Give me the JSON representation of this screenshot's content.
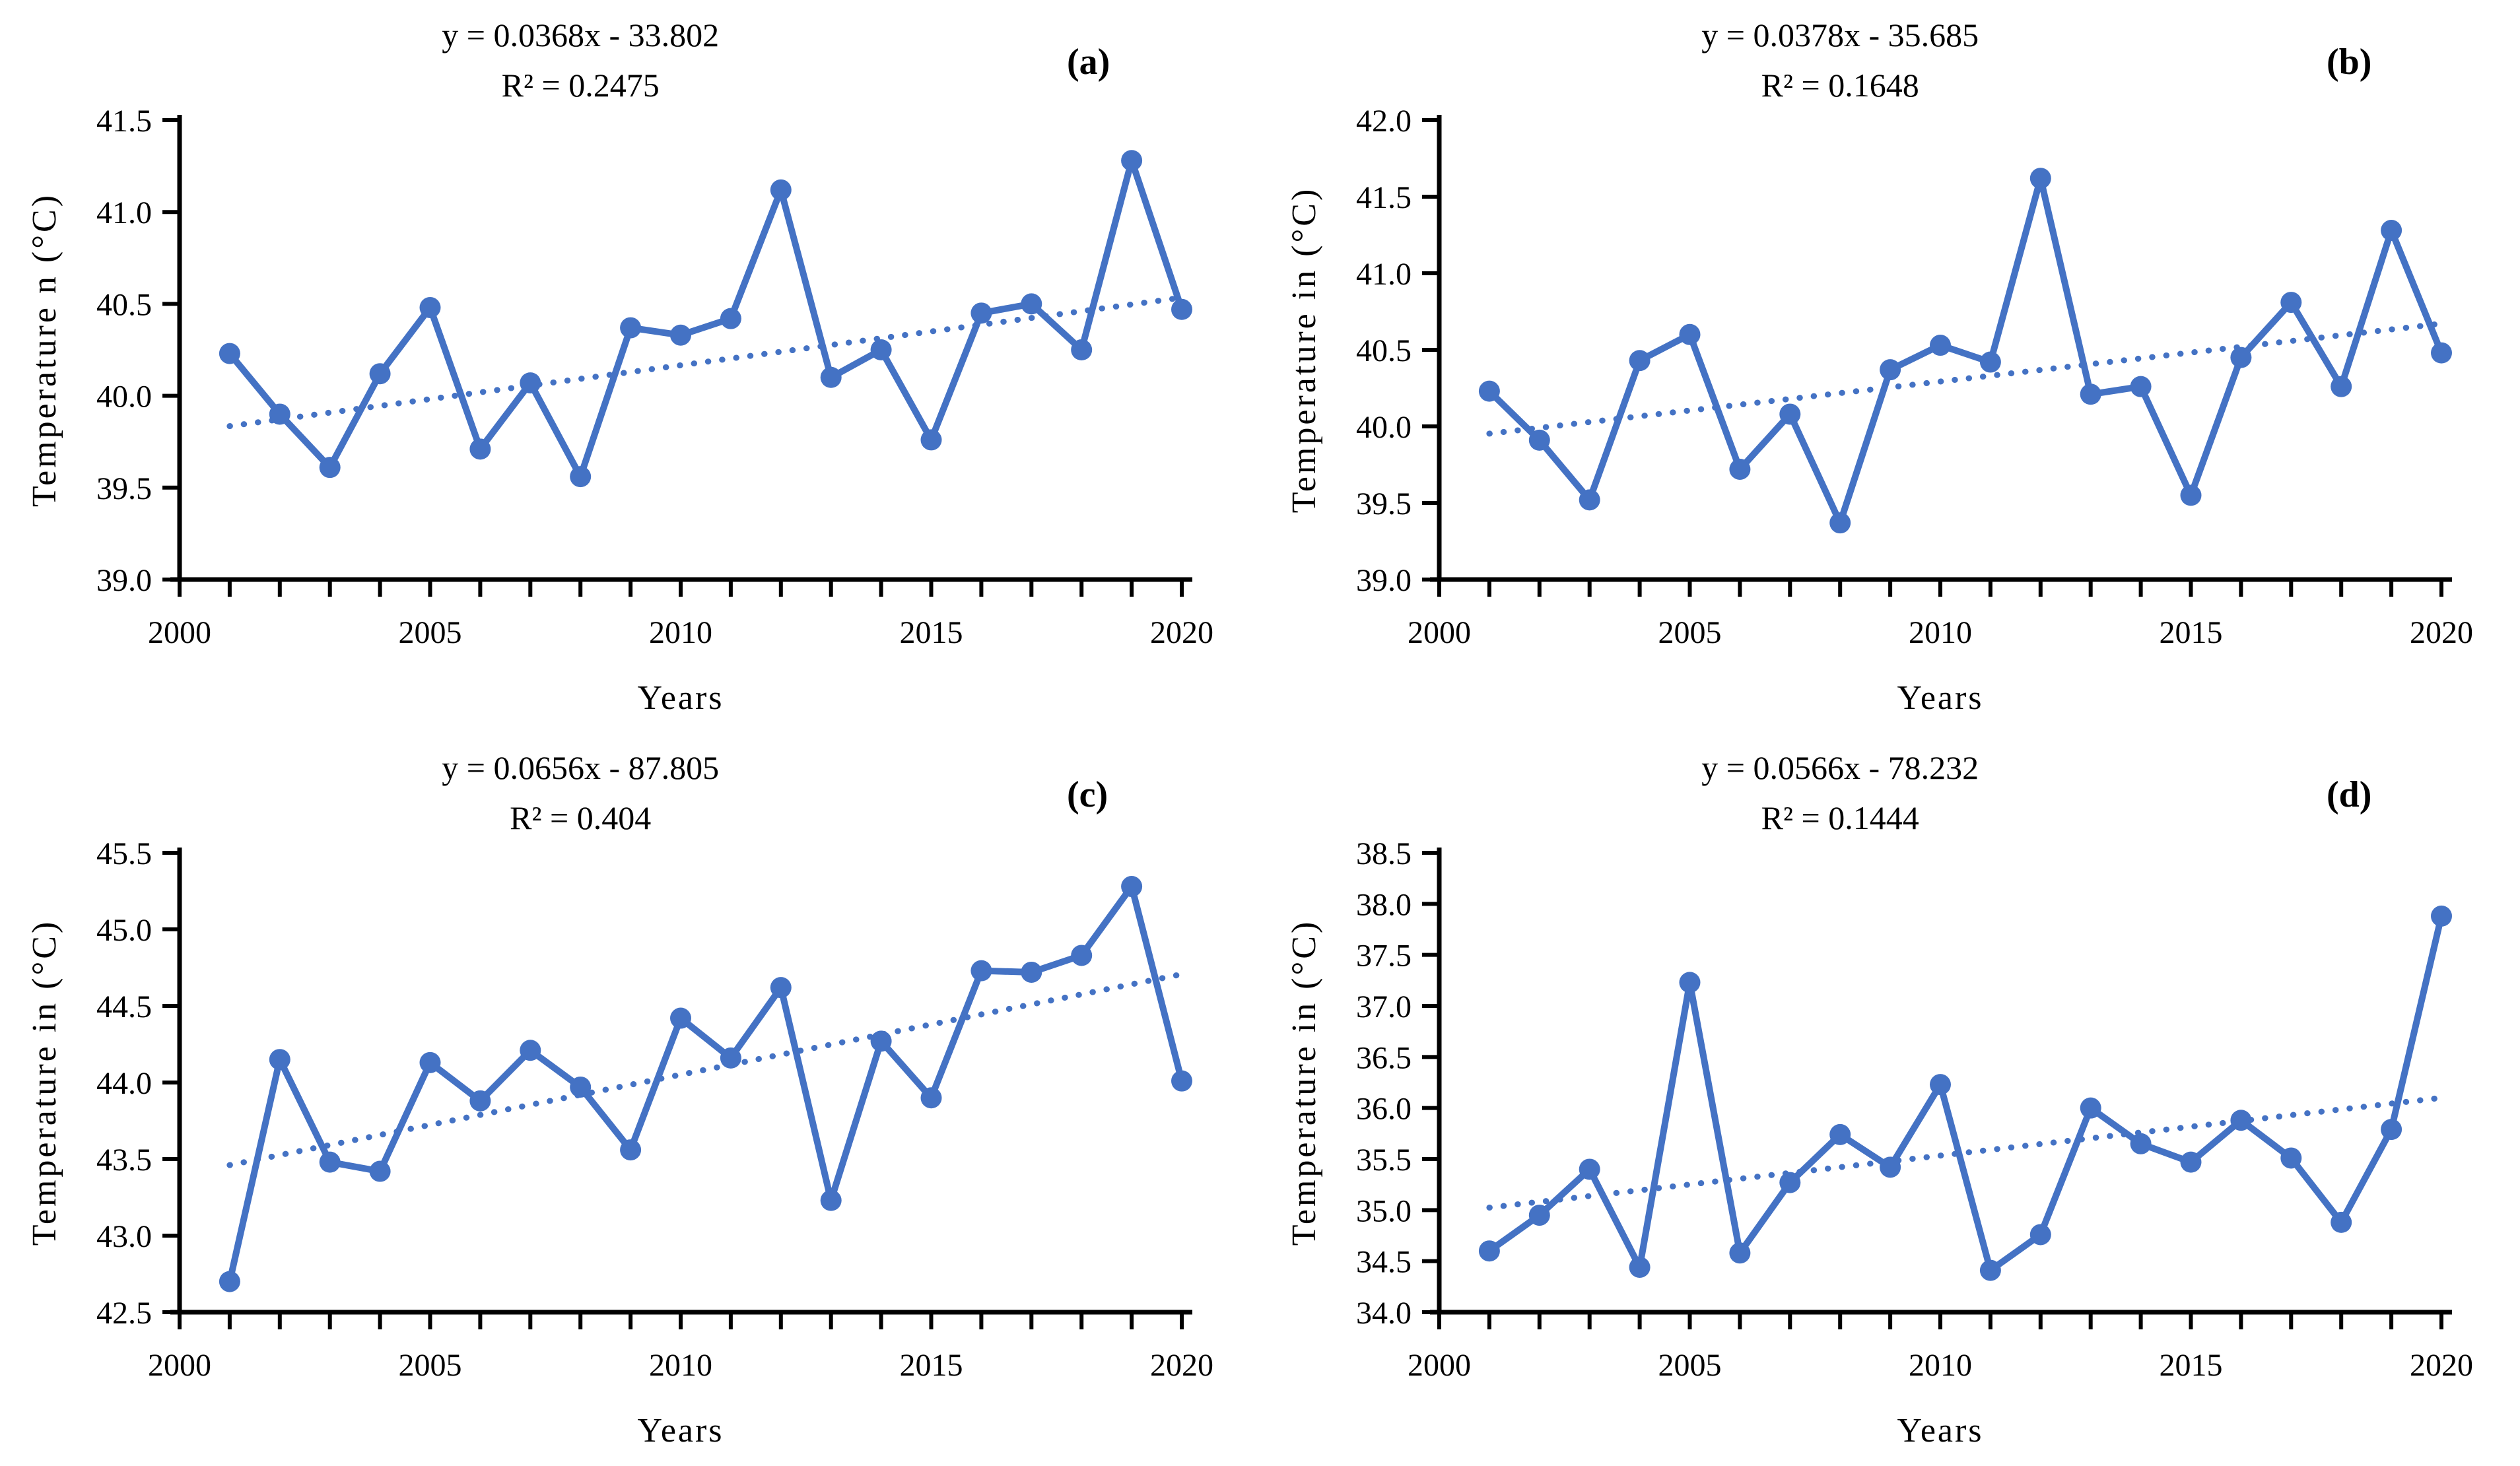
{
  "figure": {
    "background": "#ffffff"
  },
  "accent_color": "#4472C4",
  "axis_color": "#000000",
  "chart_data": [
    {
      "type": "line",
      "panel_label": "(a)",
      "equation_label": "y = 0.0368x - 33.802",
      "r_squared_label": "R² = 0.2475",
      "trend": {
        "slope": 0.0368,
        "intercept": -33.802
      },
      "xlabel": "Years",
      "ylabel": "Temperature n (°C)",
      "xlim": [
        2000,
        2020
      ],
      "ylim": [
        39.0,
        41.5
      ],
      "ystep": 0.5,
      "xticks_labeled": [
        2000,
        2005,
        2010,
        2015,
        2020
      ],
      "minor_xtick_step": 1,
      "grid": false,
      "legend": "none",
      "marker": "circle",
      "trendline_style": "dotted",
      "x": [
        2001,
        2002,
        2003,
        2004,
        2005,
        2006,
        2007,
        2008,
        2009,
        2010,
        2011,
        2012,
        2013,
        2014,
        2015,
        2016,
        2017,
        2018,
        2019,
        2020
      ],
      "values": [
        40.23,
        39.9,
        39.61,
        40.12,
        40.48,
        39.71,
        40.07,
        39.56,
        40.37,
        40.33,
        40.42,
        41.12,
        40.1,
        40.25,
        39.76,
        40.45,
        40.5,
        40.25,
        41.28,
        40.47
      ]
    },
    {
      "type": "line",
      "panel_label": "(b)",
      "equation_label": "y = 0.0378x - 35.685",
      "r_squared_label": "R² = 0.1648",
      "trend": {
        "slope": 0.0378,
        "intercept": -35.685
      },
      "xlabel": "Years",
      "ylabel": "Temperature in (°C)",
      "xlim": [
        2000,
        2020
      ],
      "ylim": [
        39.0,
        42.0
      ],
      "ystep": 0.5,
      "xticks_labeled": [
        2000,
        2005,
        2010,
        2015,
        2020
      ],
      "minor_xtick_step": 1,
      "grid": false,
      "legend": "none",
      "marker": "circle",
      "trendline_style": "dotted",
      "x": [
        2001,
        2002,
        2003,
        2004,
        2005,
        2006,
        2007,
        2008,
        2009,
        2010,
        2011,
        2012,
        2013,
        2014,
        2015,
        2016,
        2017,
        2018,
        2019,
        2020
      ],
      "values": [
        40.23,
        39.91,
        39.52,
        40.43,
        40.6,
        39.72,
        40.08,
        39.37,
        40.37,
        40.53,
        40.42,
        41.62,
        40.21,
        40.26,
        39.55,
        40.45,
        40.81,
        40.26,
        41.28,
        40.48
      ]
    },
    {
      "type": "line",
      "panel_label": "(c)",
      "equation_label": "y = 0.0656x - 87.805",
      "r_squared_label": "R² = 0.404",
      "trend": {
        "slope": 0.0656,
        "intercept": -87.805
      },
      "xlabel": "Years",
      "ylabel": "Temperature in (°C)",
      "xlim": [
        2000,
        2020
      ],
      "ylim": [
        42.5,
        45.5
      ],
      "ystep": 0.5,
      "xticks_labeled": [
        2000,
        2005,
        2010,
        2015,
        2020
      ],
      "minor_xtick_step": 1,
      "grid": false,
      "legend": "none",
      "marker": "circle",
      "trendline_style": "dotted",
      "x": [
        2001,
        2002,
        2003,
        2004,
        2005,
        2006,
        2007,
        2008,
        2009,
        2010,
        2011,
        2012,
        2013,
        2014,
        2015,
        2016,
        2017,
        2018,
        2019,
        2020
      ],
      "values": [
        42.7,
        44.15,
        43.48,
        43.42,
        44.13,
        43.88,
        44.21,
        43.97,
        43.56,
        44.42,
        44.16,
        44.62,
        43.23,
        44.27,
        43.9,
        44.73,
        44.72,
        44.83,
        45.28,
        44.01
      ]
    },
    {
      "type": "line",
      "panel_label": "(d)",
      "equation_label": "y = 0.0566x - 78.232",
      "r_squared_label": "R² = 0.1444",
      "trend": {
        "slope": 0.0566,
        "intercept": -78.232
      },
      "xlabel": "Years",
      "ylabel": "Temperature in (°C)",
      "xlim": [
        2000,
        2020
      ],
      "ylim": [
        34.0,
        38.5
      ],
      "ystep": 0.5,
      "xticks_labeled": [
        2000,
        2005,
        2010,
        2015,
        2020
      ],
      "minor_xtick_step": 1,
      "grid": false,
      "legend": "none",
      "marker": "circle",
      "trendline_style": "dotted",
      "x": [
        2001,
        2002,
        2003,
        2004,
        2005,
        2006,
        2007,
        2008,
        2009,
        2010,
        2011,
        2012,
        2013,
        2014,
        2015,
        2016,
        2017,
        2018,
        2019,
        2020
      ],
      "values": [
        34.6,
        34.95,
        35.4,
        34.44,
        37.23,
        34.58,
        35.27,
        35.74,
        35.42,
        36.23,
        34.41,
        34.76,
        36.0,
        35.65,
        35.47,
        35.88,
        35.51,
        34.88,
        35.79,
        37.88
      ]
    }
  ]
}
